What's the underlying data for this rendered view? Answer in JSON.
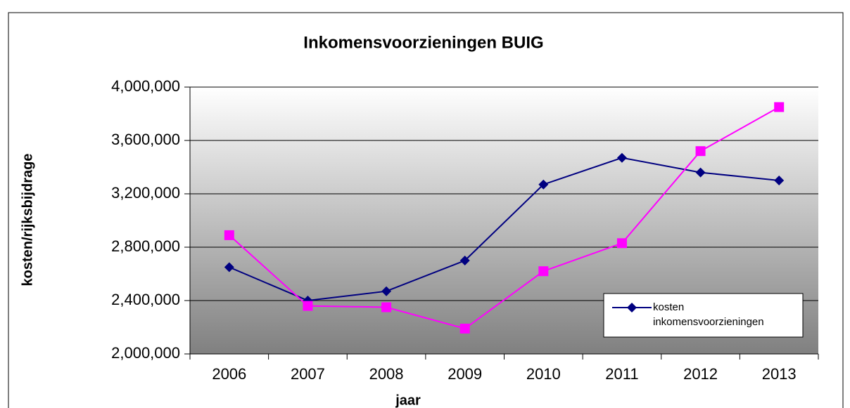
{
  "chart_data": {
    "type": "line",
    "title": "Inkomensvoorzieningen BUIG",
    "y_label": "kosten/rijksbijdrage",
    "x_label": "jaar",
    "categories": [
      "2006",
      "2007",
      "2008",
      "2009",
      "2010",
      "2011",
      "2012",
      "2013"
    ],
    "series": [
      {
        "name": "kosten inkomensvoorzieningen",
        "color": "#000080",
        "marker": "diamond",
        "values": [
          2650000,
          2400000,
          2470000,
          2700000,
          3270000,
          3470000,
          3360000,
          3300000
        ]
      },
      {
        "color": "#ff00ff",
        "marker": "square",
        "values": [
          2890000,
          2360000,
          2350000,
          2190000,
          2620000,
          2830000,
          3520000,
          3850000
        ]
      }
    ],
    "ylim": [
      2000000,
      4000000
    ],
    "yticks": [
      {
        "value": 2000000,
        "label": "2,000,000"
      },
      {
        "value": 2400000,
        "label": "2,400,000"
      },
      {
        "value": 2800000,
        "label": "2,800,000"
      },
      {
        "value": 3200000,
        "label": "3,200,000"
      },
      {
        "value": 3600000,
        "label": "3,600,000"
      },
      {
        "value": 4000000,
        "label": "4,000,000"
      }
    ],
    "grid": true,
    "legend": "lower right"
  }
}
